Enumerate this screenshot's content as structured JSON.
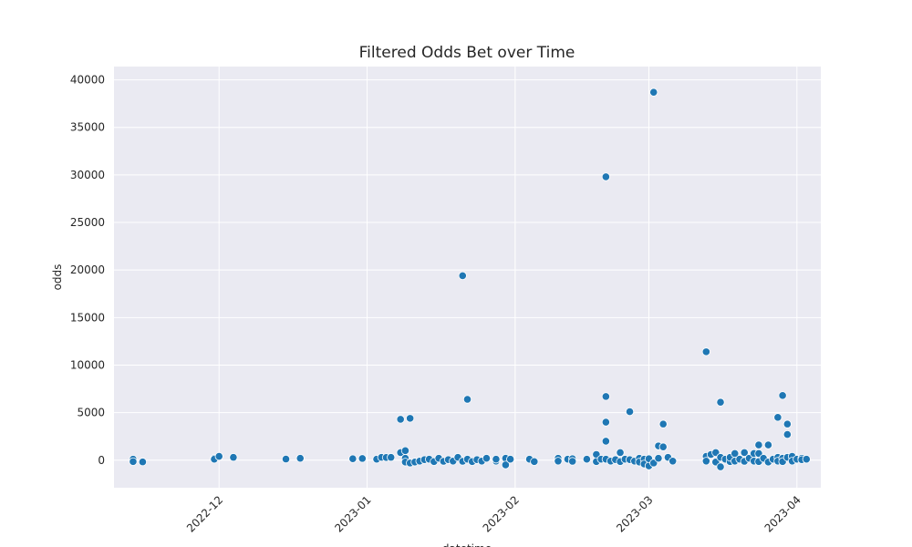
{
  "chart_data": {
    "type": "scatter",
    "title": "Filtered Odds Bet over Time",
    "xlabel": "datetime",
    "ylabel": "odds",
    "x_axis_type": "date",
    "xlim": [
      "2022-11-09",
      "2023-04-06"
    ],
    "ylim": [
      -2900,
      41400
    ],
    "x_ticks": [
      "2022-12",
      "2023-01",
      "2023-02",
      "2023-03",
      "2023-04"
    ],
    "y_ticks": [
      0,
      5000,
      10000,
      15000,
      20000,
      25000,
      30000,
      35000,
      40000
    ],
    "grid": true,
    "background": "#eaeaf2",
    "marker_color": "#1f77b4",
    "points": [
      {
        "x": "2022-11-13",
        "y": 100
      },
      {
        "x": "2022-11-13",
        "y": -150
      },
      {
        "x": "2022-11-15",
        "y": -180
      },
      {
        "x": "2022-11-30",
        "y": 200
      },
      {
        "x": "2022-11-30",
        "y": 100
      },
      {
        "x": "2022-12-01",
        "y": 400
      },
      {
        "x": "2022-12-04",
        "y": 300
      },
      {
        "x": "2022-12-15",
        "y": 120
      },
      {
        "x": "2022-12-18",
        "y": 200
      },
      {
        "x": "2022-12-29",
        "y": 150
      },
      {
        "x": "2022-12-31",
        "y": 180
      },
      {
        "x": "2023-01-03",
        "y": 100
      },
      {
        "x": "2023-01-04",
        "y": 300
      },
      {
        "x": "2023-01-05",
        "y": 280
      },
      {
        "x": "2023-01-06",
        "y": 300
      },
      {
        "x": "2023-01-08",
        "y": 4300
      },
      {
        "x": "2023-01-08",
        "y": 800
      },
      {
        "x": "2023-01-09",
        "y": 200
      },
      {
        "x": "2023-01-09",
        "y": -200
      },
      {
        "x": "2023-01-09",
        "y": 1000
      },
      {
        "x": "2023-01-10",
        "y": -300
      },
      {
        "x": "2023-01-10",
        "y": 4400
      },
      {
        "x": "2023-01-11",
        "y": -200
      },
      {
        "x": "2023-01-12",
        "y": -100
      },
      {
        "x": "2023-01-13",
        "y": 50
      },
      {
        "x": "2023-01-14",
        "y": 100
      },
      {
        "x": "2023-01-15",
        "y": -150
      },
      {
        "x": "2023-01-16",
        "y": 200
      },
      {
        "x": "2023-01-17",
        "y": -120
      },
      {
        "x": "2023-01-18",
        "y": 50
      },
      {
        "x": "2023-01-19",
        "y": -100
      },
      {
        "x": "2023-01-20",
        "y": 300
      },
      {
        "x": "2023-01-21",
        "y": 19400
      },
      {
        "x": "2023-01-21",
        "y": -120
      },
      {
        "x": "2023-01-22",
        "y": 6400
      },
      {
        "x": "2023-01-22",
        "y": 100
      },
      {
        "x": "2023-01-23",
        "y": -150
      },
      {
        "x": "2023-01-24",
        "y": 50
      },
      {
        "x": "2023-01-25",
        "y": -100
      },
      {
        "x": "2023-01-26",
        "y": 200
      },
      {
        "x": "2023-01-28",
        "y": -100
      },
      {
        "x": "2023-01-28",
        "y": 100
      },
      {
        "x": "2023-01-30",
        "y": 200
      },
      {
        "x": "2023-01-30",
        "y": -500
      },
      {
        "x": "2023-01-31",
        "y": 100
      },
      {
        "x": "2023-02-04",
        "y": 100
      },
      {
        "x": "2023-02-05",
        "y": -150
      },
      {
        "x": "2023-02-10",
        "y": 200
      },
      {
        "x": "2023-02-10",
        "y": -100
      },
      {
        "x": "2023-02-12",
        "y": 100
      },
      {
        "x": "2023-02-13",
        "y": 150
      },
      {
        "x": "2023-02-13",
        "y": -120
      },
      {
        "x": "2023-02-16",
        "y": 100
      },
      {
        "x": "2023-02-18",
        "y": 600
      },
      {
        "x": "2023-02-18",
        "y": -150
      },
      {
        "x": "2023-02-19",
        "y": 100
      },
      {
        "x": "2023-02-20",
        "y": 29800
      },
      {
        "x": "2023-02-20",
        "y": 6700
      },
      {
        "x": "2023-02-20",
        "y": 4000
      },
      {
        "x": "2023-02-20",
        "y": 2000
      },
      {
        "x": "2023-02-20",
        "y": 100
      },
      {
        "x": "2023-02-21",
        "y": -100
      },
      {
        "x": "2023-02-22",
        "y": 50
      },
      {
        "x": "2023-02-23",
        "y": 800
      },
      {
        "x": "2023-02-23",
        "y": -150
      },
      {
        "x": "2023-02-24",
        "y": 100
      },
      {
        "x": "2023-02-25",
        "y": 5100
      },
      {
        "x": "2023-02-25",
        "y": 50
      },
      {
        "x": "2023-02-26",
        "y": -100
      },
      {
        "x": "2023-02-27",
        "y": 200
      },
      {
        "x": "2023-02-27",
        "y": -200
      },
      {
        "x": "2023-02-28",
        "y": 100
      },
      {
        "x": "2023-02-28",
        "y": -400
      },
      {
        "x": "2023-03-01",
        "y": -600
      },
      {
        "x": "2023-03-01",
        "y": 150
      },
      {
        "x": "2023-03-02",
        "y": 38700
      },
      {
        "x": "2023-03-02",
        "y": -300
      },
      {
        "x": "2023-03-03",
        "y": 1500
      },
      {
        "x": "2023-03-03",
        "y": 200
      },
      {
        "x": "2023-03-04",
        "y": 1400
      },
      {
        "x": "2023-03-04",
        "y": 3800
      },
      {
        "x": "2023-03-05",
        "y": 300
      },
      {
        "x": "2023-03-06",
        "y": -100
      },
      {
        "x": "2023-03-13",
        "y": 11400
      },
      {
        "x": "2023-03-13",
        "y": 400
      },
      {
        "x": "2023-03-13",
        "y": -100
      },
      {
        "x": "2023-03-14",
        "y": 600
      },
      {
        "x": "2023-03-15",
        "y": -200
      },
      {
        "x": "2023-03-15",
        "y": 800
      },
      {
        "x": "2023-03-16",
        "y": 6100
      },
      {
        "x": "2023-03-16",
        "y": 300
      },
      {
        "x": "2023-03-16",
        "y": -700
      },
      {
        "x": "2023-03-17",
        "y": 100
      },
      {
        "x": "2023-03-18",
        "y": -150
      },
      {
        "x": "2023-03-18",
        "y": 300
      },
      {
        "x": "2023-03-19",
        "y": 700
      },
      {
        "x": "2023-03-19",
        "y": -100
      },
      {
        "x": "2023-03-20",
        "y": 100
      },
      {
        "x": "2023-03-21",
        "y": 800
      },
      {
        "x": "2023-03-21",
        "y": -120
      },
      {
        "x": "2023-03-22",
        "y": 200
      },
      {
        "x": "2023-03-23",
        "y": 700
      },
      {
        "x": "2023-03-23",
        "y": -100
      },
      {
        "x": "2023-03-24",
        "y": 1600
      },
      {
        "x": "2023-03-24",
        "y": 700
      },
      {
        "x": "2023-03-24",
        "y": -150
      },
      {
        "x": "2023-03-25",
        "y": 200
      },
      {
        "x": "2023-03-26",
        "y": 1600
      },
      {
        "x": "2023-03-26",
        "y": -200
      },
      {
        "x": "2023-03-27",
        "y": 100
      },
      {
        "x": "2023-03-28",
        "y": 4500
      },
      {
        "x": "2023-03-28",
        "y": 300
      },
      {
        "x": "2023-03-28",
        "y": -100
      },
      {
        "x": "2023-03-29",
        "y": 6800
      },
      {
        "x": "2023-03-29",
        "y": 200
      },
      {
        "x": "2023-03-29",
        "y": -150
      },
      {
        "x": "2023-03-30",
        "y": 3800
      },
      {
        "x": "2023-03-30",
        "y": 2700
      },
      {
        "x": "2023-03-30",
        "y": 300
      },
      {
        "x": "2023-03-31",
        "y": 400
      },
      {
        "x": "2023-03-31",
        "y": -100
      },
      {
        "x": "2023-04-01",
        "y": 100
      },
      {
        "x": "2023-04-02",
        "y": 200
      },
      {
        "x": "2023-04-02",
        "y": 50
      },
      {
        "x": "2023-04-03",
        "y": 100
      }
    ]
  }
}
